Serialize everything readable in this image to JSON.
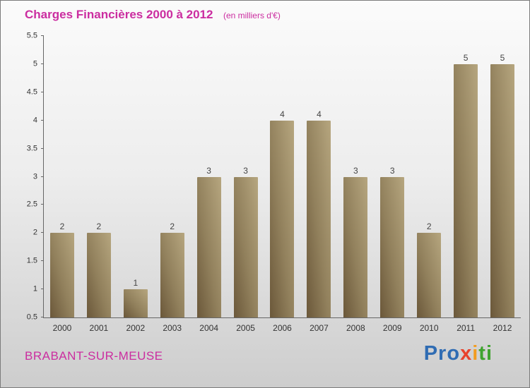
{
  "header": {
    "title": "Charges Financières 2000 à 2012",
    "subtitle": "(en milliers d'€)",
    "title_color": "#cb2da0"
  },
  "footer": {
    "commune": "BRABANT-SUR-MEUSE",
    "commune_color": "#cb2da0",
    "logo_letters": [
      {
        "ch": "P",
        "color": "#2f6cb3"
      },
      {
        "ch": "r",
        "color": "#2f6cb3"
      },
      {
        "ch": "o",
        "color": "#2f6cb3"
      },
      {
        "ch": "x",
        "color": "#e8432d"
      },
      {
        "ch": "i",
        "color": "#f29c1f"
      },
      {
        "ch": "t",
        "color": "#3fa32f"
      },
      {
        "ch": "i",
        "color": "#3fa32f"
      }
    ]
  },
  "chart_data": {
    "type": "bar",
    "title": "Charges Financières 2000 à 2012",
    "subtitle": "(en milliers d'€)",
    "categories": [
      "2000",
      "2001",
      "2002",
      "2003",
      "2004",
      "2005",
      "2006",
      "2007",
      "2008",
      "2009",
      "2010",
      "2011",
      "2012"
    ],
    "values": [
      2,
      2,
      1,
      2,
      3,
      3,
      4,
      4,
      3,
      3,
      2,
      5,
      5
    ],
    "xlabel": "",
    "ylabel": "",
    "ylim": [
      0.5,
      5.5
    ],
    "ytick_step": 0.5,
    "grid": false,
    "legend": false,
    "bar_color_dark": "#6b583a",
    "bar_color_light": "#b6a67f",
    "axis_color": "#666666"
  }
}
